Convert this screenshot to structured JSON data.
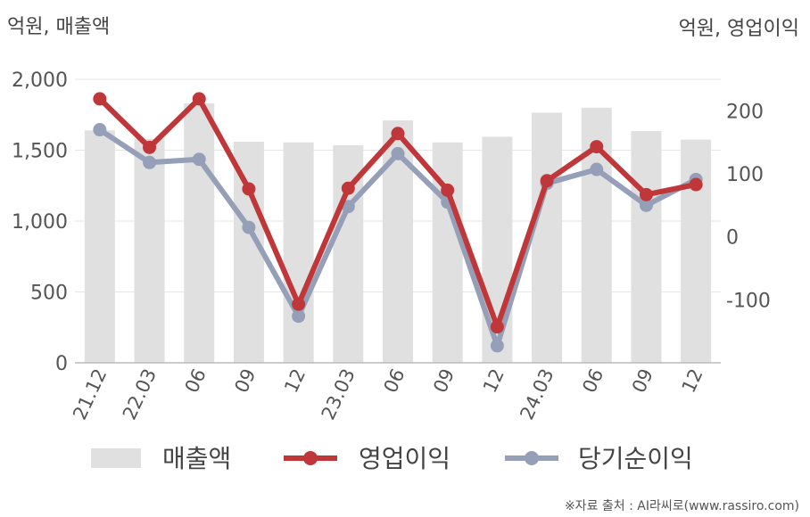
{
  "chart_data": {
    "type": "bar",
    "units": {
      "left": "억원, 매출액",
      "right": "억원, 영업이익"
    },
    "categories": [
      "21.12",
      "22.03",
      "06",
      "09",
      "12",
      "23.03",
      "06",
      "09",
      "12",
      "24.03",
      "06",
      "09",
      "12"
    ],
    "left_axis": {
      "ylim": [
        0,
        2000
      ],
      "ticks": [
        "0",
        "500",
        "1,000",
        "1,500",
        "2,000"
      ],
      "tick_values": [
        0,
        500,
        1000,
        1500,
        2000
      ]
    },
    "right_axis": {
      "ylim": [
        -200,
        250
      ],
      "ticks": [
        "-100",
        "0",
        "100",
        "200"
      ],
      "tick_values": [
        -100,
        0,
        100,
        200
      ]
    },
    "series": [
      {
        "name": "매출액",
        "kind": "bar",
        "axis": "left",
        "color": "#e0e0e0",
        "values": [
          1640,
          1580,
          1830,
          1560,
          1555,
          1535,
          1710,
          1555,
          1595,
          1765,
          1800,
          1635,
          1575
        ]
      },
      {
        "name": "영업이익",
        "kind": "line",
        "axis": "right",
        "color": "#c0373a",
        "values": [
          219,
          142,
          219,
          76,
          -107,
          77,
          164,
          74,
          -143,
          89,
          143,
          67,
          83
        ]
      },
      {
        "name": "당기순이익",
        "kind": "line",
        "axis": "right",
        "color": "#95a0b8",
        "values": [
          170,
          118,
          123,
          15,
          -126,
          48,
          132,
          55,
          -173,
          85,
          107,
          50,
          91
        ]
      }
    ],
    "grid": true,
    "legend_placement": "bottom"
  },
  "source": "※자료 출처 : AI라씨로(www.rassiro.com)"
}
